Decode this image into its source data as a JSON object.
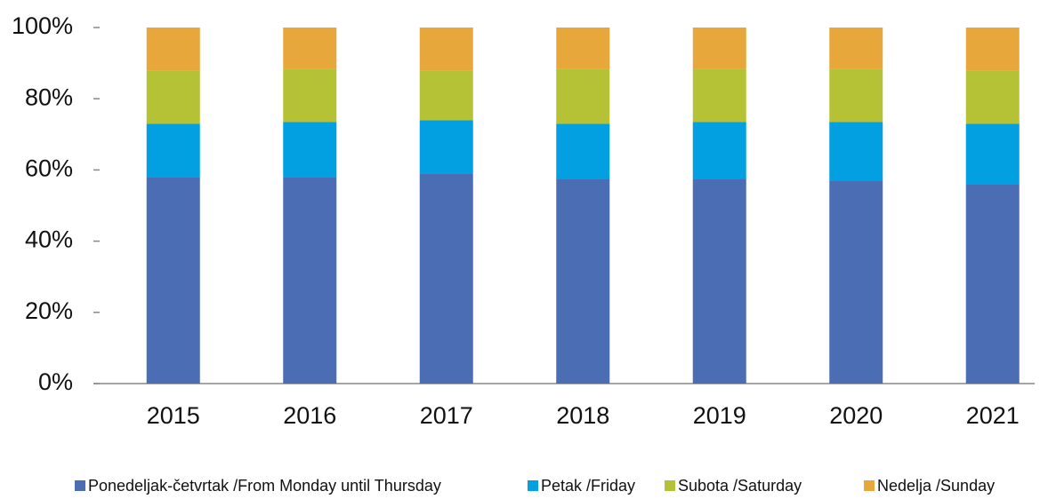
{
  "chart_data": {
    "type": "stacked_bar",
    "categories": [
      "2015",
      "2016",
      "2017",
      "2018",
      "2019",
      "2020",
      "2021"
    ],
    "series": [
      {
        "name": "Ponedeljak-četvrtak /From Monday until Thursday",
        "color": "#4a6db3",
        "values": [
          58,
          58,
          59,
          57.5,
          57.5,
          57,
          56
        ]
      },
      {
        "name": "Petak /Friday",
        "color": "#02a0e0",
        "values": [
          15,
          15.5,
          15,
          15.5,
          16,
          16.5,
          17
        ]
      },
      {
        "name": "Subota /Saturday",
        "color": "#b5c236",
        "values": [
          15,
          15,
          14,
          15.5,
          15,
          15,
          15
        ]
      },
      {
        "name": "Nedelja /Sunday",
        "color": "#e8a73a",
        "values": [
          12,
          11.5,
          12,
          11.5,
          11.5,
          11.5,
          12
        ]
      }
    ],
    "ylim": [
      0,
      100
    ],
    "yticks": [
      {
        "value": 0,
        "label": "0%"
      },
      {
        "value": 20,
        "label": "20%"
      },
      {
        "value": 40,
        "label": "40%"
      },
      {
        "value": 60,
        "label": "60%"
      },
      {
        "value": 80,
        "label": "80%"
      },
      {
        "value": 100,
        "label": "100%"
      }
    ],
    "legend": "bottom"
  }
}
